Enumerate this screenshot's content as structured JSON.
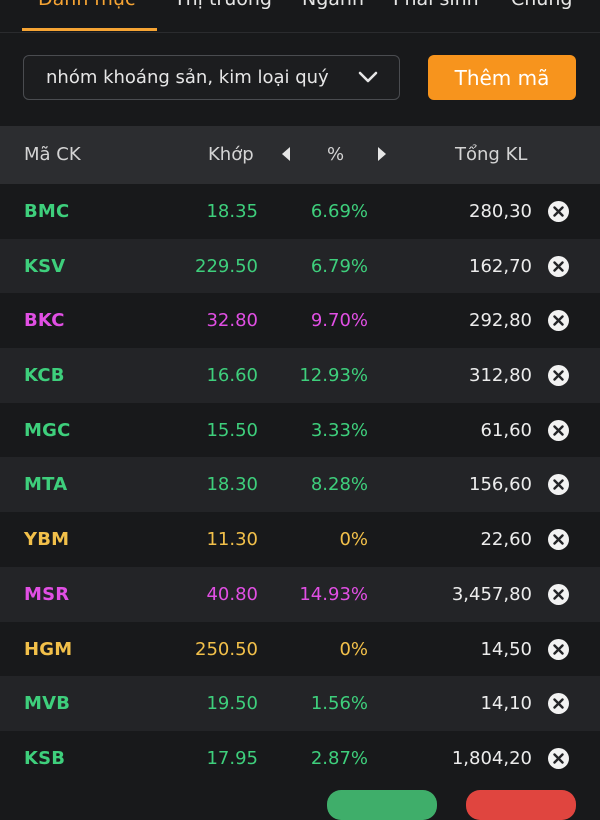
{
  "tabs": [
    {
      "label": "Danh mục",
      "active": true
    },
    {
      "label": "Thị trường",
      "active": false
    },
    {
      "label": "Ngành",
      "active": false
    },
    {
      "label": "Phái sinh",
      "active": false
    },
    {
      "label": "Chứng",
      "active": false
    }
  ],
  "watchlist": {
    "selected": "nhóm khoáng sản, kim loại quý",
    "add_label": "Thêm mã"
  },
  "table": {
    "headers": {
      "code": "Mã CK",
      "price": "Khớp",
      "pct": "%",
      "volume": "Tổng KL"
    },
    "rows": [
      {
        "code": "BMC",
        "price": "18.35",
        "pct": "6.69%",
        "volume": "280,30",
        "color": "#3ecf7c"
      },
      {
        "code": "KSV",
        "price": "229.50",
        "pct": "6.79%",
        "volume": "162,70",
        "color": "#3ecf7c"
      },
      {
        "code": "BKC",
        "price": "32.80",
        "pct": "9.70%",
        "volume": "292,80",
        "color": "#e14fe4"
      },
      {
        "code": "KCB",
        "price": "16.60",
        "pct": "12.93%",
        "volume": "312,80",
        "color": "#3ecf7c"
      },
      {
        "code": "MGC",
        "price": "15.50",
        "pct": "3.33%",
        "volume": "61,60",
        "color": "#3ecf7c"
      },
      {
        "code": "MTA",
        "price": "18.30",
        "pct": "8.28%",
        "volume": "156,60",
        "color": "#3ecf7c"
      },
      {
        "code": "YBM",
        "price": "11.30",
        "pct": "0%",
        "volume": "22,60",
        "color": "#f2c04a"
      },
      {
        "code": "MSR",
        "price": "40.80",
        "pct": "14.93%",
        "volume": "3,457,80",
        "color": "#e14fe4"
      },
      {
        "code": "HGM",
        "price": "250.50",
        "pct": "0%",
        "volume": "14,50",
        "color": "#f2c04a"
      },
      {
        "code": "MVB",
        "price": "19.50",
        "pct": "1.56%",
        "volume": "14,10",
        "color": "#3ecf7c"
      },
      {
        "code": "KSB",
        "price": "17.95",
        "pct": "2.87%",
        "volume": "1,804,20",
        "color": "#3ecf7c"
      }
    ]
  },
  "colors": {
    "accent": "#f7941d",
    "up": "#3ecf7c",
    "ceiling": "#e14fe4",
    "reference": "#f2c04a",
    "buy_button": "#3fae6a",
    "sell_button": "#e0453f"
  }
}
